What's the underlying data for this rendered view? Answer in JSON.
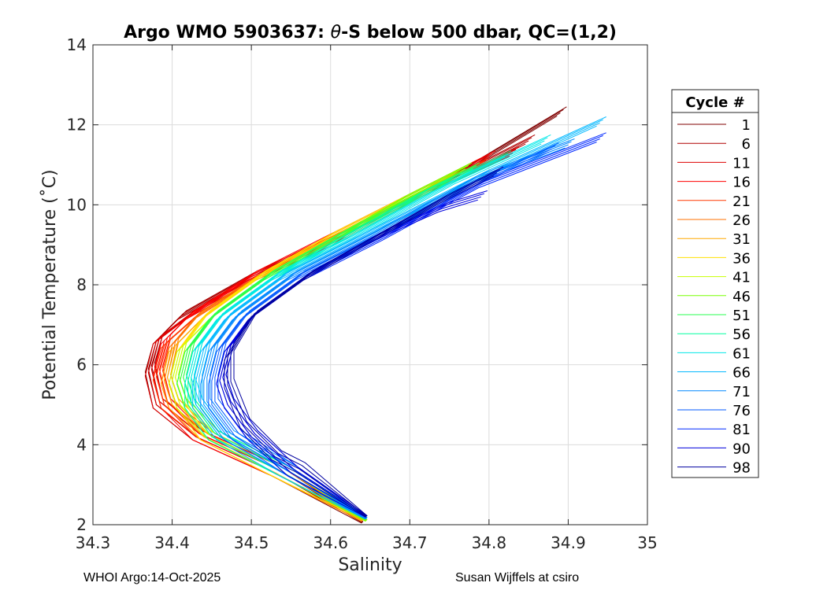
{
  "chart_data": {
    "type": "line",
    "title": "Argo WMO 5903637: θ-S below 500 dbar,  QC=(1,2)",
    "title_prefix": "Argo WMO 5903637: ",
    "title_theta": "θ",
    "title_suffix": "-S below 500 dbar,  QC=(1,2)",
    "xlabel": "Salinity",
    "ylabel": "Potential Temperature (˚C)",
    "xlim": [
      34.3,
      35
    ],
    "ylim": [
      2,
      14
    ],
    "x_ticks": [
      "34.3",
      "34.4",
      "34.5",
      "34.6",
      "34.7",
      "34.8",
      "34.9",
      "35"
    ],
    "y_ticks": [
      "2",
      "4",
      "6",
      "8",
      "10",
      "12",
      "14"
    ],
    "grid": true,
    "legend_title": "Cycle #",
    "legend_position": "right",
    "series": [
      {
        "name": "1",
        "color": "#800000",
        "x": [
          34.64,
          34.53,
          34.43,
          34.38,
          34.37,
          34.38,
          34.41,
          34.5,
          34.61,
          34.73,
          34.89
        ],
        "y": [
          2.05,
          3.3,
          4.2,
          5.0,
          5.9,
          6.6,
          7.2,
          8.2,
          9.2,
          10.4,
          12.3
        ]
      },
      {
        "name": "6",
        "color": "#b00000",
        "x": [
          34.64,
          34.53,
          34.43,
          34.38,
          34.37,
          34.38,
          34.41,
          34.5,
          34.61,
          34.71,
          34.85
        ],
        "y": [
          2.1,
          3.3,
          4.2,
          5.0,
          5.8,
          6.6,
          7.2,
          8.2,
          9.2,
          10.2,
          11.6
        ]
      },
      {
        "name": "11",
        "color": "#dd0000",
        "x": [
          34.64,
          34.53,
          34.43,
          34.38,
          34.37,
          34.38,
          34.42,
          34.51,
          34.62,
          34.72,
          34.83
        ],
        "y": [
          2.1,
          3.3,
          4.2,
          5.0,
          5.8,
          6.6,
          7.2,
          8.2,
          9.2,
          10.3,
          11.3
        ]
      },
      {
        "name": "16",
        "color": "#ff0000",
        "x": [
          34.64,
          34.53,
          34.43,
          34.39,
          34.38,
          34.39,
          34.42,
          34.5,
          34.6,
          34.7,
          34.8
        ],
        "y": [
          2.1,
          3.3,
          4.2,
          5.0,
          5.8,
          6.6,
          7.2,
          8.2,
          9.2,
          10.2,
          11.2
        ]
      },
      {
        "name": "21",
        "color": "#ff3800",
        "x": [
          34.64,
          34.53,
          34.44,
          34.39,
          34.38,
          34.39,
          34.43,
          34.51,
          34.61,
          34.7,
          34.79
        ],
        "y": [
          2.1,
          3.3,
          4.2,
          5.0,
          5.7,
          6.5,
          7.2,
          8.2,
          9.2,
          10.1,
          11.0
        ]
      },
      {
        "name": "26",
        "color": "#ff7000",
        "x": [
          34.64,
          34.53,
          34.44,
          34.4,
          34.39,
          34.4,
          34.43,
          34.51,
          34.61,
          34.7,
          34.78
        ],
        "y": [
          2.1,
          3.3,
          4.2,
          5.0,
          5.6,
          6.5,
          7.2,
          8.2,
          9.2,
          10.1,
          10.9
        ]
      },
      {
        "name": "31",
        "color": "#ffa800",
        "x": [
          34.64,
          34.53,
          34.44,
          34.4,
          34.39,
          34.4,
          34.44,
          34.51,
          34.61,
          34.69,
          34.76
        ],
        "y": [
          2.1,
          3.3,
          4.2,
          5.0,
          5.6,
          6.4,
          7.2,
          8.2,
          9.2,
          10.0,
          10.8
        ]
      },
      {
        "name": "36",
        "color": "#ffe000",
        "x": [
          34.645,
          34.53,
          34.44,
          34.41,
          34.4,
          34.41,
          34.44,
          34.51,
          34.6,
          34.68,
          34.75
        ],
        "y": [
          2.1,
          3.3,
          4.2,
          5.0,
          5.6,
          6.4,
          7.2,
          8.2,
          9.2,
          10.0,
          10.7
        ]
      },
      {
        "name": "41",
        "color": "#c8ff00",
        "x": [
          34.645,
          34.54,
          34.45,
          34.41,
          34.4,
          34.41,
          34.45,
          34.52,
          34.61,
          34.69,
          34.77
        ],
        "y": [
          2.1,
          3.3,
          4.2,
          5.0,
          5.6,
          6.4,
          7.2,
          8.2,
          9.2,
          10.1,
          10.9
        ]
      },
      {
        "name": "46",
        "color": "#78ff00",
        "x": [
          34.645,
          34.54,
          34.45,
          34.42,
          34.41,
          34.42,
          34.45,
          34.52,
          34.61,
          34.69,
          34.77
        ],
        "y": [
          2.1,
          3.3,
          4.2,
          5.0,
          5.6,
          6.4,
          7.2,
          8.2,
          9.2,
          10.1,
          10.9
        ]
      },
      {
        "name": "51",
        "color": "#28ff50",
        "x": [
          34.645,
          34.54,
          34.45,
          34.42,
          34.41,
          34.42,
          34.45,
          34.52,
          34.61,
          34.7,
          34.78
        ],
        "y": [
          2.15,
          3.3,
          4.2,
          5.0,
          5.6,
          6.4,
          7.2,
          8.2,
          9.2,
          10.1,
          10.9
        ]
      },
      {
        "name": "56",
        "color": "#00ffa0",
        "x": [
          34.645,
          34.54,
          34.45,
          34.42,
          34.42,
          34.43,
          34.46,
          34.53,
          34.62,
          34.72,
          34.82
        ],
        "y": [
          2.15,
          3.3,
          4.2,
          5.0,
          5.6,
          6.4,
          7.2,
          8.2,
          9.2,
          10.3,
          11.2
        ]
      },
      {
        "name": "61",
        "color": "#00e8e8",
        "x": [
          34.645,
          34.54,
          34.46,
          34.43,
          34.42,
          34.43,
          34.46,
          34.53,
          34.63,
          34.76,
          34.87
        ],
        "y": [
          2.15,
          3.3,
          4.2,
          5.0,
          5.6,
          6.4,
          7.2,
          8.2,
          9.2,
          10.6,
          11.6
        ]
      },
      {
        "name": "66",
        "color": "#00b8ff",
        "x": [
          34.645,
          34.54,
          34.46,
          34.43,
          34.43,
          34.44,
          34.47,
          34.54,
          34.64,
          34.79,
          34.94
        ],
        "y": [
          2.15,
          3.3,
          4.2,
          5.0,
          5.6,
          6.4,
          7.2,
          8.2,
          9.2,
          10.7,
          12.05
        ]
      },
      {
        "name": "71",
        "color": "#0088ff",
        "x": [
          34.645,
          34.55,
          34.47,
          34.44,
          34.44,
          34.45,
          34.48,
          34.55,
          34.65,
          34.78,
          34.9
        ],
        "y": [
          2.15,
          3.3,
          4.2,
          5.0,
          5.6,
          6.4,
          7.2,
          8.2,
          9.2,
          10.6,
          11.5
        ]
      },
      {
        "name": "76",
        "color": "#0058ff",
        "x": [
          34.645,
          34.55,
          34.48,
          34.45,
          34.45,
          34.46,
          34.49,
          34.56,
          34.66,
          34.78,
          34.88
        ],
        "y": [
          2.2,
          3.3,
          4.2,
          5.0,
          5.6,
          6.4,
          7.2,
          8.2,
          9.2,
          10.5,
          11.4
        ]
      },
      {
        "name": "81",
        "color": "#0028ff",
        "x": [
          34.645,
          34.55,
          34.5,
          34.47,
          34.46,
          34.47,
          34.5,
          34.57,
          34.67,
          34.79,
          34.94
        ],
        "y": [
          2.2,
          3.3,
          4.2,
          5.0,
          5.6,
          6.4,
          7.2,
          8.2,
          9.2,
          10.5,
          11.65
        ]
      },
      {
        "name": "90",
        "color": "#0000dd",
        "x": [
          34.645,
          34.55,
          34.5,
          34.47,
          34.46,
          34.47,
          34.5,
          34.57,
          34.66,
          34.74,
          34.79
        ],
        "y": [
          2.2,
          3.3,
          4.2,
          5.0,
          5.6,
          6.4,
          7.2,
          8.2,
          9.2,
          9.9,
          10.2
        ]
      },
      {
        "name": "98",
        "color": "#0000a0",
        "x": [
          34.645,
          34.56,
          34.53,
          34.49,
          34.47,
          34.47,
          34.5,
          34.57,
          34.66,
          34.74,
          34.81
        ],
        "y": [
          2.2,
          3.4,
          3.7,
          4.5,
          5.5,
          6.2,
          7.2,
          8.2,
          9.2,
          10.1,
          10.8
        ]
      }
    ]
  },
  "footer": {
    "left": "WHOI Argo:14-Oct-2025",
    "right": "Susan Wijffels at csiro"
  }
}
